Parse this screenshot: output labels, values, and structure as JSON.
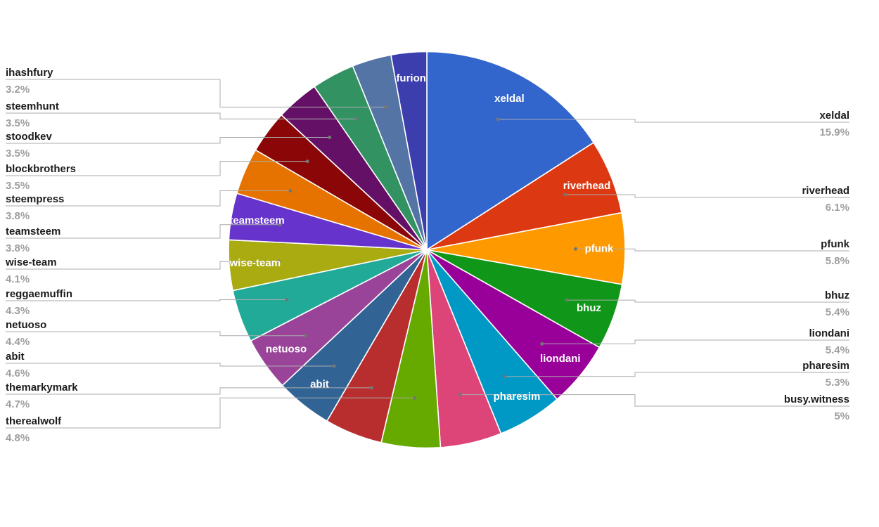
{
  "chart_data": {
    "type": "pie",
    "title": "",
    "legend_position": "labeled-callouts",
    "start_angle_deg": 0,
    "direction": "clockwise",
    "text_colors": {
      "name": "#1c1c1c",
      "percent": "#9e9e9e",
      "inner_label": "#ffffff",
      "leader_line": "#ababab",
      "leader_dot": "#757575"
    },
    "slices": [
      {
        "label": "xeldal",
        "value": 15.9,
        "pct_label": "15.9%",
        "color": "#3366CC",
        "inner_label": true,
        "callout": "right"
      },
      {
        "label": "riverhead",
        "value": 6.1,
        "pct_label": "6.1%",
        "color": "#DC3912",
        "inner_label": true,
        "callout": "right"
      },
      {
        "label": "pfunk",
        "value": 5.8,
        "pct_label": "5.8%",
        "color": "#FF9900",
        "inner_label": true,
        "callout": "right"
      },
      {
        "label": "bhuz",
        "value": 5.4,
        "pct_label": "5.4%",
        "color": "#109618",
        "inner_label": true,
        "callout": "right"
      },
      {
        "label": "liondani",
        "value": 5.4,
        "pct_label": "5.4%",
        "color": "#990099",
        "inner_label": true,
        "callout": "right"
      },
      {
        "label": "pharesim",
        "value": 5.3,
        "pct_label": "5.3%",
        "color": "#0099C6",
        "inner_label": true,
        "callout": "right"
      },
      {
        "label": "busy.witness",
        "value": 5.0,
        "pct_label": "5%",
        "color": "#DD4477",
        "inner_label": false,
        "callout": "right"
      },
      {
        "label": "therealwolf",
        "value": 4.8,
        "pct_label": "4.8%",
        "color": "#66AA00",
        "inner_label": false,
        "callout": "left"
      },
      {
        "label": "themarkymark",
        "value": 4.7,
        "pct_label": "4.7%",
        "color": "#B82E2E",
        "inner_label": false,
        "callout": "left"
      },
      {
        "label": "abit",
        "value": 4.6,
        "pct_label": "4.6%",
        "color": "#316395",
        "inner_label": true,
        "callout": "left"
      },
      {
        "label": "netuoso",
        "value": 4.4,
        "pct_label": "4.4%",
        "color": "#994499",
        "inner_label": true,
        "callout": "left"
      },
      {
        "label": "reggaemuffin",
        "value": 4.3,
        "pct_label": "4.3%",
        "color": "#22AA99",
        "inner_label": false,
        "callout": "left"
      },
      {
        "label": "wise-team",
        "value": 4.1,
        "pct_label": "4.1%",
        "color": "#AAAA11",
        "inner_label": true,
        "callout": "left"
      },
      {
        "label": "teamsteem",
        "value": 3.8,
        "pct_label": "3.8%",
        "color": "#6633CC",
        "inner_label": true,
        "callout": "left"
      },
      {
        "label": "steempress",
        "value": 3.8,
        "pct_label": "3.8%",
        "color": "#E67300",
        "inner_label": false,
        "callout": "left"
      },
      {
        "label": "blockbrothers",
        "value": 3.5,
        "pct_label": "3.5%",
        "color": "#8B0707",
        "inner_label": false,
        "callout": "left"
      },
      {
        "label": "stoodkev",
        "value": 3.5,
        "pct_label": "3.5%",
        "color": "#651067",
        "inner_label": false,
        "callout": "left"
      },
      {
        "label": "steemhunt",
        "value": 3.5,
        "pct_label": "3.5%",
        "color": "#329262",
        "inner_label": false,
        "callout": "left"
      },
      {
        "label": "ihashfury",
        "value": 3.2,
        "pct_label": "3.2%",
        "color": "#5574A6",
        "inner_label": false,
        "callout": "left"
      },
      {
        "label": "furion",
        "value": 2.9,
        "pct_label": "",
        "color": "#3B3EAC",
        "inner_label": true,
        "callout": "none"
      }
    ]
  }
}
